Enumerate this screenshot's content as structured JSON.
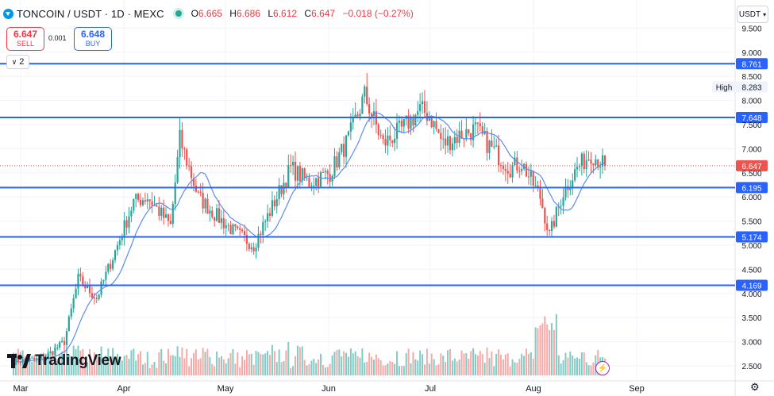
{
  "header": {
    "symbol": "TONCOIN / USDT · 1D · MEXC",
    "open_label": "O",
    "open": "6.665",
    "high_label": "H",
    "high": "6.686",
    "low_label": "L",
    "low": "6.612",
    "close_label": "C",
    "close": "6.647",
    "change": "−0.018 (−0.27%)"
  },
  "trade": {
    "sell_price": "6.647",
    "sell_label": "SELL",
    "spread": "0.001",
    "buy_price": "6.648",
    "buy_label": "BUY"
  },
  "indicators_count": "2",
  "currency": "USDT",
  "brand": "TradingView",
  "colors": {
    "up": "#26a69a",
    "down": "#ef5350",
    "level": "#2962ff",
    "ma": "#5b8def",
    "vol_up": "#80cbc4",
    "vol_down": "#f7a9a7"
  },
  "chart_data": {
    "type": "candlestick",
    "y_axis": {
      "ticks": [
        "9.500",
        "9.000",
        "8.500",
        "8.000",
        "7.500",
        "7.000",
        "6.500",
        "6.000",
        "5.500",
        "5.000",
        "4.500",
        "4.000",
        "3.500",
        "3.000",
        "2.500"
      ],
      "range": [
        2.32,
        9.95
      ]
    },
    "x_axis": {
      "ticks": [
        "Mar",
        "Apr",
        "May",
        "Jun",
        "Jul",
        "Aug",
        "Sep"
      ]
    },
    "levels": [
      {
        "label": "8.761",
        "value": 8.761
      },
      {
        "label": "7.648",
        "value": 7.648
      },
      {
        "label": "6.195",
        "value": 6.195
      },
      {
        "label": "5.174",
        "value": 5.174
      },
      {
        "label": "4.169",
        "value": 4.169
      }
    ],
    "current_price": {
      "label": "6.647",
      "value": 6.647
    },
    "high_marker": {
      "label": "High",
      "price_label": "8.283",
      "value": 8.283
    },
    "series_keypoints": [
      {
        "day": 0,
        "price": 2.6
      },
      {
        "day": 13,
        "price": 2.65
      },
      {
        "day": 22,
        "price": 3.0
      },
      {
        "day": 28,
        "price": 4.3
      },
      {
        "day": 36,
        "price": 3.9
      },
      {
        "day": 45,
        "price": 5.0
      },
      {
        "day": 52,
        "price": 5.9
      },
      {
        "day": 58,
        "price": 6.0
      },
      {
        "day": 68,
        "price": 5.4
      },
      {
        "day": 72,
        "price": 7.2
      },
      {
        "day": 80,
        "price": 6.0
      },
      {
        "day": 88,
        "price": 5.6
      },
      {
        "day": 95,
        "price": 5.3
      },
      {
        "day": 104,
        "price": 5.0
      },
      {
        "day": 112,
        "price": 5.8
      },
      {
        "day": 120,
        "price": 6.6
      },
      {
        "day": 128,
        "price": 6.3
      },
      {
        "day": 137,
        "price": 6.5
      },
      {
        "day": 145,
        "price": 7.2
      },
      {
        "day": 152,
        "price": 8.1
      },
      {
        "day": 160,
        "price": 7.1
      },
      {
        "day": 168,
        "price": 7.4
      },
      {
        "day": 176,
        "price": 7.8
      },
      {
        "day": 180,
        "price": 7.7
      },
      {
        "day": 186,
        "price": 7.1
      },
      {
        "day": 194,
        "price": 7.3
      },
      {
        "day": 200,
        "price": 7.4
      },
      {
        "day": 207,
        "price": 7.0
      },
      {
        "day": 215,
        "price": 6.6
      },
      {
        "day": 220,
        "price": 6.7
      },
      {
        "day": 228,
        "price": 6.0
      },
      {
        "day": 232,
        "price": 5.2
      },
      {
        "day": 238,
        "price": 6.1
      },
      {
        "day": 244,
        "price": 6.6
      },
      {
        "day": 250,
        "price": 6.9
      },
      {
        "day": 256,
        "price": 6.65
      }
    ]
  }
}
